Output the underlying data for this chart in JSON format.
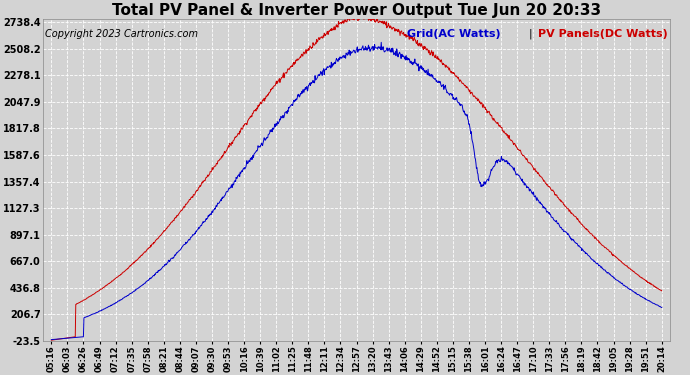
{
  "title": "Total PV Panel & Inverter Power Output Tue Jun 20 20:33",
  "copyright": "Copyright 2023 Cartronics.com",
  "legend_ac": "Grid(AC Watts)",
  "legend_dc": "PV Panels(DC Watts)",
  "ac_color": "#0000cc",
  "dc_color": "#cc0000",
  "y_min": -23.5,
  "y_max": 2738.4,
  "y_ticks": [
    -23.5,
    206.7,
    436.8,
    667.0,
    897.1,
    1127.3,
    1357.4,
    1587.6,
    1817.8,
    2047.9,
    2278.1,
    2508.2,
    2738.4
  ],
  "background_color": "#d3d3d3",
  "plot_bg_color": "#d3d3d3",
  "grid_color": "#ffffff",
  "title_fontsize": 11,
  "copyright_fontsize": 7,
  "legend_fontsize": 8,
  "x_labels": [
    "05:16",
    "06:03",
    "06:26",
    "06:49",
    "07:12",
    "07:35",
    "07:58",
    "08:21",
    "08:44",
    "09:07",
    "09:30",
    "09:53",
    "10:16",
    "10:39",
    "11:02",
    "11:25",
    "11:48",
    "12:11",
    "12:34",
    "12:57",
    "13:20",
    "13:43",
    "14:06",
    "14:29",
    "14:52",
    "15:15",
    "15:38",
    "16:01",
    "16:24",
    "16:47",
    "17:10",
    "17:33",
    "17:56",
    "18:19",
    "18:42",
    "19:05",
    "19:28",
    "19:51",
    "20:14"
  ]
}
